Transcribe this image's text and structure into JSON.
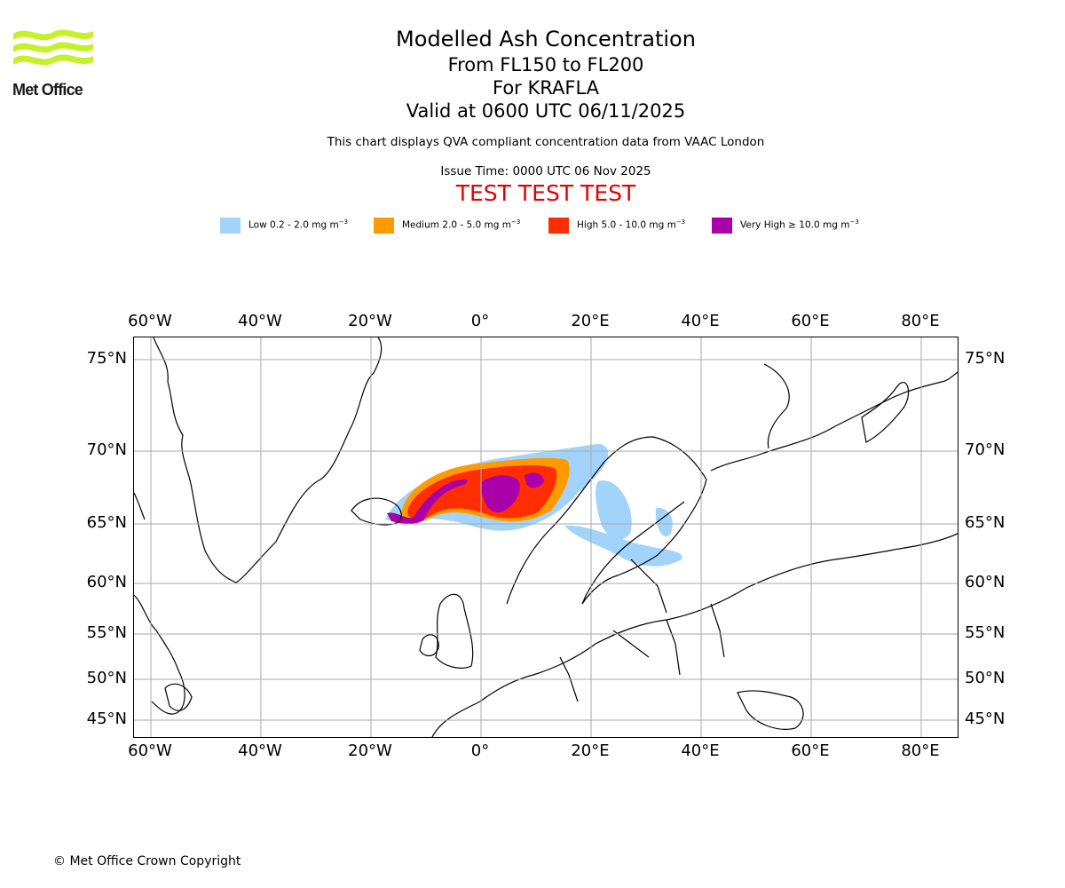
{
  "header": {
    "logo_text": "Met Office",
    "title": "Modelled Ash Concentration",
    "levels": "From FL150 to FL200",
    "volcano": "For KRAFLA",
    "valid": "Valid at 0600 UTC 06/11/2025",
    "note": "This chart displays QVA compliant concentration data from VAAC London",
    "issue_time": "Issue Time: 0000 UTC 06 Nov 2025",
    "test_banner": "TEST TEST TEST"
  },
  "legend": {
    "items": [
      {
        "prefix": "Low 0.2 - 2.0 mg m",
        "exp": "−3",
        "color": "#a2d3fb"
      },
      {
        "prefix": "Medium 2.0 - 5.0 mg m",
        "exp": "−3",
        "color": "#ff9a00"
      },
      {
        "prefix": "High 5.0 - 10.0 mg m",
        "exp": "−3",
        "color": "#ff2e00"
      },
      {
        "prefix": "Very High  ≥  10.0 mg m",
        "exp": "−3",
        "color": "#aa00aa"
      }
    ]
  },
  "map": {
    "lon_ticks": [
      "60°W",
      "40°W",
      "20°W",
      "0°",
      "20°E",
      "40°E",
      "60°E",
      "80°E"
    ],
    "lat_ticks": [
      "75°N",
      "70°N",
      "65°N",
      "60°N",
      "55°N",
      "50°N",
      "45°N"
    ],
    "colors": {
      "low": "#a2d3fb",
      "medium": "#ff9a00",
      "high": "#ff2e00",
      "very_high": "#aa00aa",
      "grid": "#aaaaaa"
    }
  },
  "footer": {
    "copyright": "© Met Office Crown Copyright"
  }
}
